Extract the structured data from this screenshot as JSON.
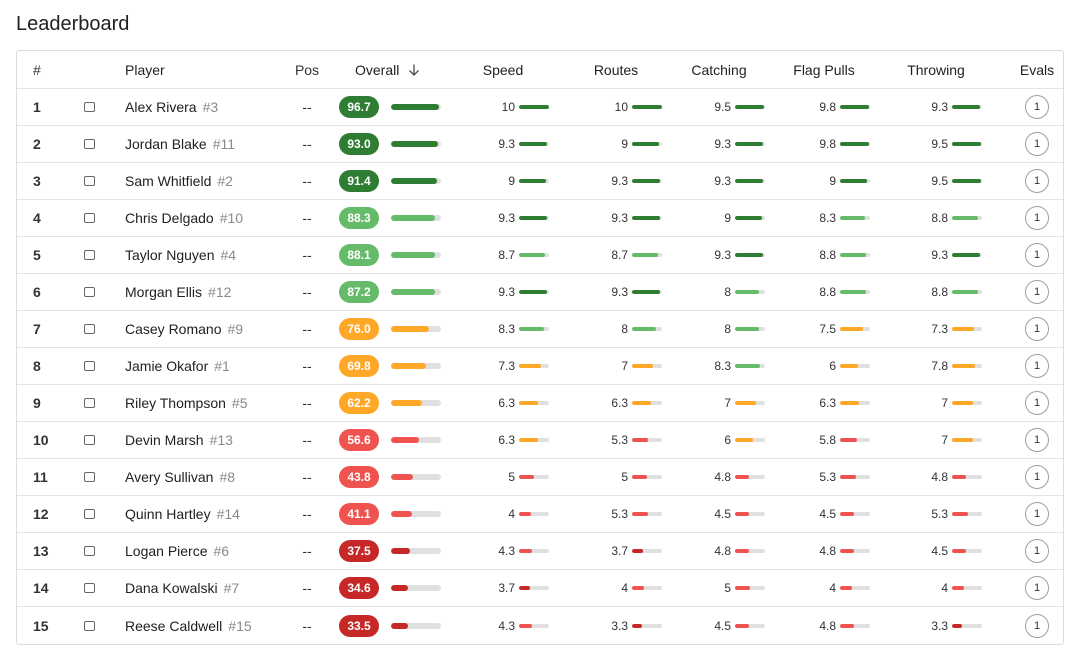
{
  "page_title": "Leaderboard",
  "columns": {
    "rank": "#",
    "player": "Player",
    "pos": "Pos",
    "overall": "Overall",
    "speed": "Speed",
    "routes": "Routes",
    "catching": "Catching",
    "flag_pulls": "Flag Pulls",
    "throwing": "Throwing",
    "evals": "Evals"
  },
  "colors": {
    "dark_green": "#2e7d32",
    "light_green": "#66bb6a",
    "orange": "#ffa726",
    "light_red": "#ef5350",
    "dark_red": "#c62828",
    "track": "#e0e0e0"
  },
  "icons": {
    "sort": "arrow-down-icon",
    "checkbox": "checkbox-icon"
  },
  "players": [
    {
      "rank": "1",
      "name": "Alex Rivera",
      "jersey": "#3",
      "pos": "--",
      "overall": "96.7",
      "speed": "10",
      "routes": "10",
      "catching": "9.5",
      "flag_pulls": "9.8",
      "throwing": "9.3",
      "evals": "1"
    },
    {
      "rank": "2",
      "name": "Jordan Blake",
      "jersey": "#11",
      "pos": "--",
      "overall": "93.0",
      "speed": "9.3",
      "routes": "9",
      "catching": "9.3",
      "flag_pulls": "9.8",
      "throwing": "9.5",
      "evals": "1"
    },
    {
      "rank": "3",
      "name": "Sam Whitfield",
      "jersey": "#2",
      "pos": "--",
      "overall": "91.4",
      "speed": "9",
      "routes": "9.3",
      "catching": "9.3",
      "flag_pulls": "9",
      "throwing": "9.5",
      "evals": "1"
    },
    {
      "rank": "4",
      "name": "Chris Delgado",
      "jersey": "#10",
      "pos": "--",
      "overall": "88.3",
      "speed": "9.3",
      "routes": "9.3",
      "catching": "9",
      "flag_pulls": "8.3",
      "throwing": "8.8",
      "evals": "1"
    },
    {
      "rank": "5",
      "name": "Taylor Nguyen",
      "jersey": "#4",
      "pos": "--",
      "overall": "88.1",
      "speed": "8.7",
      "routes": "8.7",
      "catching": "9.3",
      "flag_pulls": "8.8",
      "throwing": "9.3",
      "evals": "1"
    },
    {
      "rank": "6",
      "name": "Morgan Ellis",
      "jersey": "#12",
      "pos": "--",
      "overall": "87.2",
      "speed": "9.3",
      "routes": "9.3",
      "catching": "8",
      "flag_pulls": "8.8",
      "throwing": "8.8",
      "evals": "1"
    },
    {
      "rank": "7",
      "name": "Casey Romano",
      "jersey": "#9",
      "pos": "--",
      "overall": "76.0",
      "speed": "8.3",
      "routes": "8",
      "catching": "8",
      "flag_pulls": "7.5",
      "throwing": "7.3",
      "evals": "1"
    },
    {
      "rank": "8",
      "name": "Jamie Okafor",
      "jersey": "#1",
      "pos": "--",
      "overall": "69.8",
      "speed": "7.3",
      "routes": "7",
      "catching": "8.3",
      "flag_pulls": "6",
      "throwing": "7.8",
      "evals": "1"
    },
    {
      "rank": "9",
      "name": "Riley Thompson",
      "jersey": "#5",
      "pos": "--",
      "overall": "62.2",
      "speed": "6.3",
      "routes": "6.3",
      "catching": "7",
      "flag_pulls": "6.3",
      "throwing": "7",
      "evals": "1"
    },
    {
      "rank": "10",
      "name": "Devin Marsh",
      "jersey": "#13",
      "pos": "--",
      "overall": "56.6",
      "speed": "6.3",
      "routes": "5.3",
      "catching": "6",
      "flag_pulls": "5.8",
      "throwing": "7",
      "evals": "1"
    },
    {
      "rank": "11",
      "name": "Avery Sullivan",
      "jersey": "#8",
      "pos": "--",
      "overall": "43.8",
      "speed": "5",
      "routes": "5",
      "catching": "4.8",
      "flag_pulls": "5.3",
      "throwing": "4.8",
      "evals": "1"
    },
    {
      "rank": "12",
      "name": "Quinn Hartley",
      "jersey": "#14",
      "pos": "--",
      "overall": "41.1",
      "speed": "4",
      "routes": "5.3",
      "catching": "4.5",
      "flag_pulls": "4.5",
      "throwing": "5.3",
      "evals": "1"
    },
    {
      "rank": "13",
      "name": "Logan Pierce",
      "jersey": "#6",
      "pos": "--",
      "overall": "37.5",
      "speed": "4.3",
      "routes": "3.7",
      "catching": "4.8",
      "flag_pulls": "4.8",
      "throwing": "4.5",
      "evals": "1"
    },
    {
      "rank": "14",
      "name": "Dana Kowalski",
      "jersey": "#7",
      "pos": "--",
      "overall": "34.6",
      "speed": "3.7",
      "routes": "4",
      "catching": "5",
      "flag_pulls": "4",
      "throwing": "4",
      "evals": "1"
    },
    {
      "rank": "15",
      "name": "Reese Caldwell",
      "jersey": "#15",
      "pos": "--",
      "overall": "33.5",
      "speed": "4.3",
      "routes": "3.3",
      "catching": "4.5",
      "flag_pulls": "4.8",
      "throwing": "3.3",
      "evals": "1"
    }
  ]
}
